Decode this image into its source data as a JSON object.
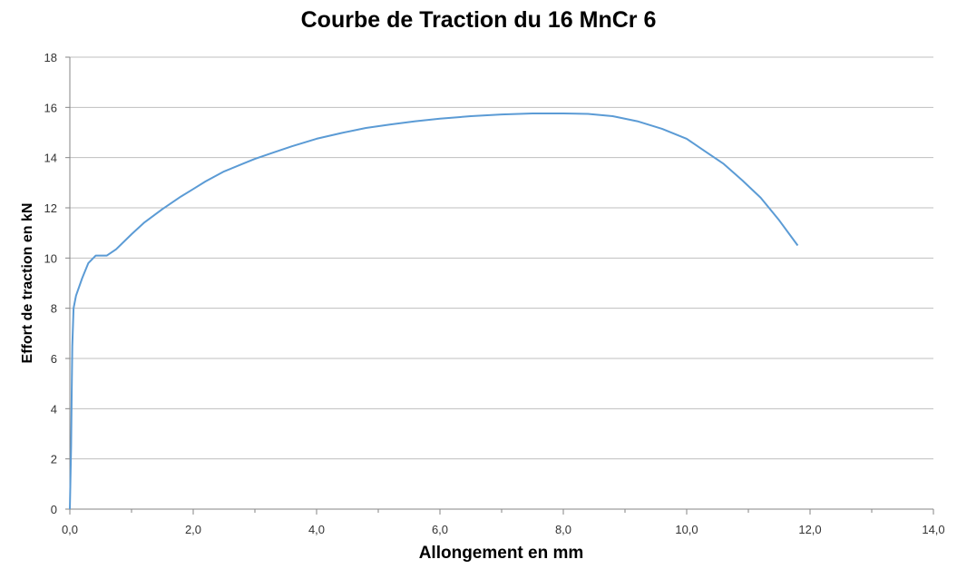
{
  "chart_data": {
    "type": "line",
    "title": "Courbe de Traction du 16 MnCr 6",
    "xlabel": "Allongement en mm",
    "ylabel": "Effort de traction en kN",
    "xlim": [
      0,
      14
    ],
    "ylim": [
      0,
      18
    ],
    "x_ticks": [
      "0,0",
      "2,0",
      "4,0",
      "6,0",
      "8,0",
      "10,0",
      "12,0",
      "14,0"
    ],
    "y_ticks": [
      "0",
      "2",
      "4",
      "6",
      "8",
      "10",
      "12",
      "14",
      "16",
      "18"
    ],
    "grid": true,
    "legend": "none",
    "line_color": "#5b9bd5",
    "series": [
      {
        "x": [
          0.0,
          0.02,
          0.03,
          0.04,
          0.06,
          0.1,
          0.2,
          0.3,
          0.42,
          0.6,
          0.75,
          1.0,
          1.2,
          1.5,
          1.8,
          2.0,
          2.2,
          2.5,
          2.8,
          3.0,
          3.3,
          3.6,
          4.0,
          4.4,
          4.8,
          5.2,
          5.6,
          6.0,
          6.5,
          7.0,
          7.5,
          8.0,
          8.4,
          8.8,
          9.2,
          9.6,
          10.0,
          10.3,
          10.6,
          10.9,
          11.2,
          11.5,
          11.8
        ],
        "y": [
          0.0,
          2.5,
          4.5,
          6.5,
          8.0,
          8.5,
          9.2,
          9.8,
          10.1,
          10.1,
          10.35,
          10.95,
          11.4,
          11.95,
          12.45,
          12.75,
          13.05,
          13.45,
          13.75,
          13.95,
          14.2,
          14.45,
          14.75,
          14.98,
          15.18,
          15.32,
          15.45,
          15.55,
          15.65,
          15.72,
          15.76,
          15.76,
          15.74,
          15.65,
          15.45,
          15.15,
          14.75,
          14.25,
          13.75,
          13.1,
          12.4,
          11.5,
          10.5
        ]
      }
    ]
  }
}
